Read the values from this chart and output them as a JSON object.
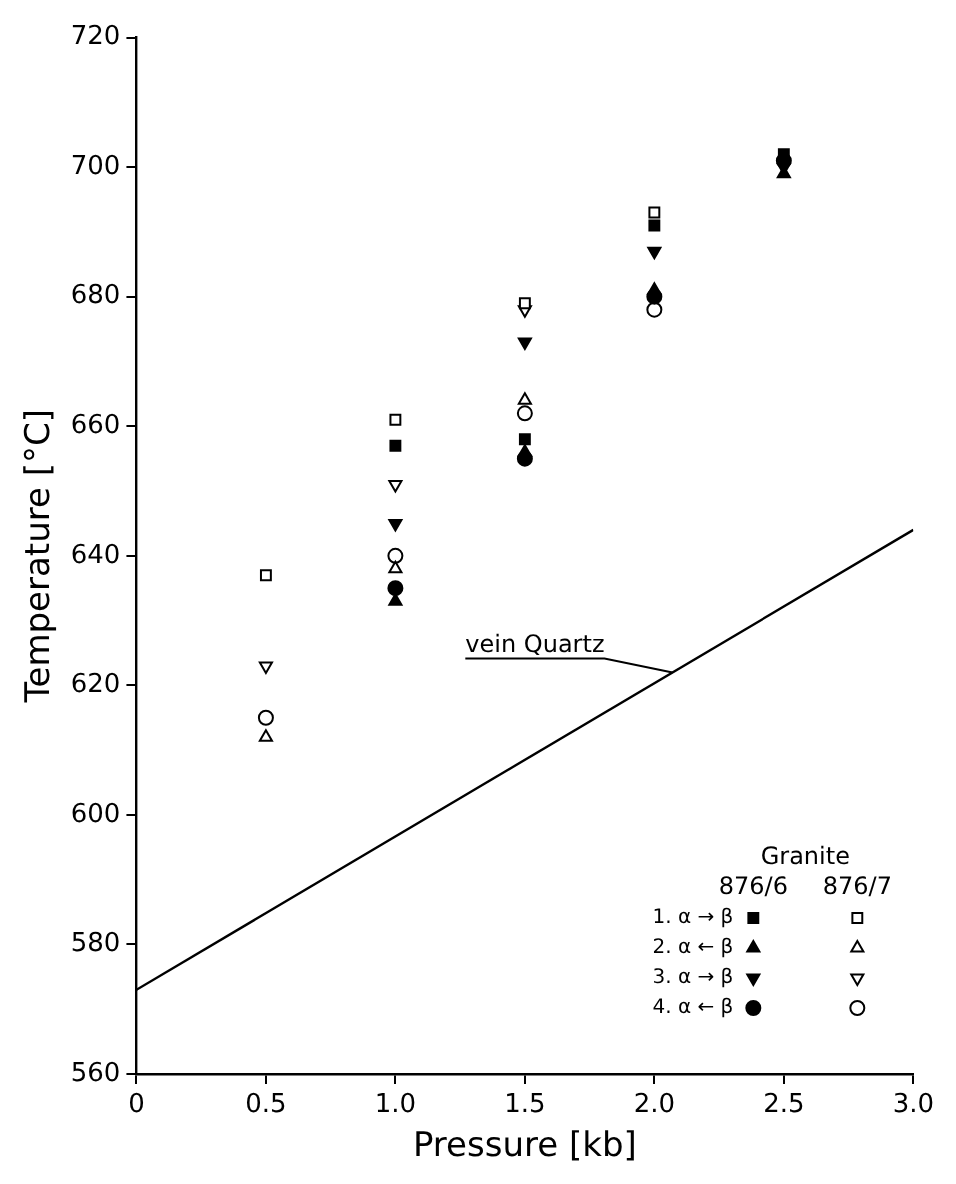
{
  "chart_data": {
    "type": "scatter",
    "xlabel": "Pressure [kb]",
    "ylabel": "Temperature [°C]",
    "legend_title": "Granite",
    "annotations": [
      "876/6",
      "876/7"
    ],
    "xlim": [
      0,
      3
    ],
    "ylim": [
      560,
      720
    ],
    "xticks": [
      0,
      {
        "value": 0.5,
        "label": "0.5"
      },
      {
        "value": 1,
        "label": "1.0"
      },
      {
        "value": 1.5,
        "label": "1.5"
      },
      {
        "value": 2,
        "label": "2.0"
      },
      {
        "value": 2.5,
        "label": "2.5"
      },
      {
        "value": 3,
        "label": "3.0"
      }
    ],
    "yticks": [
      560,
      580,
      600,
      620,
      640,
      660,
      680,
      700,
      720
    ],
    "legend": "bottom right",
    "series": [
      {
        "name": "1. α → β",
        "color": "#000000",
        "marker": "square",
        "x": [
          1,
          1.5,
          2,
          2.5
        ],
        "values": [
          657,
          658,
          691,
          702
        ]
      },
      {
        "name": "2. α ← β",
        "color": "#000000",
        "marker": "triangle",
        "x": [
          1,
          1.5,
          2,
          2.5
        ],
        "values": [
          633,
          656,
          681,
          699
        ]
      },
      {
        "name": "3. α → β",
        "color": "#000000",
        "marker": "triangle-down",
        "x": [
          1,
          1.5,
          2,
          2.5
        ],
        "values": [
          645,
          673,
          687,
          700
        ]
      },
      {
        "name": "4. α ← β",
        "color": "#000000",
        "marker": "circle",
        "x": [
          1,
          1.5,
          2,
          2.5
        ],
        "values": [
          635,
          655,
          680,
          701
        ]
      },
      {
        "color": "#ffffff",
        "marker": "square",
        "x": [
          0.5,
          1,
          1.5,
          2
        ],
        "values": [
          637,
          661,
          679,
          693
        ]
      },
      {
        "color": "#ffffff",
        "marker": "triangle",
        "x": [
          0.5,
          1,
          1.5
        ],
        "values": [
          612,
          638,
          664
        ]
      },
      {
        "color": "#ffffff",
        "marker": "triangle-down",
        "x": [
          0.5,
          1,
          1.5
        ],
        "values": [
          623,
          651,
          678
        ]
      },
      {
        "color": "#ffffff",
        "marker": "circle",
        "x": [
          0.5,
          1,
          1.5,
          2
        ],
        "values": [
          615,
          640,
          662,
          678
        ]
      },
      {
        "name": "vein Quartz",
        "type": "line",
        "color": "#000000",
        "line_style": "solid",
        "x": [
          0,
          3
        ],
        "values": [
          573,
          644
        ]
      }
    ]
  }
}
